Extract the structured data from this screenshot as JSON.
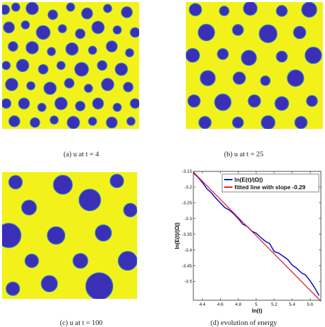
{
  "colors": {
    "background": "#f2f21a",
    "droplet": "#3b2fb8",
    "droplet_edge": "#2f7fc9",
    "series_energy": "#1010d0",
    "series_fit": "#e0202a"
  },
  "panels": [
    {
      "id": "p1",
      "caption": "(a)  u at t = 4",
      "droplets": [
        [
          0.02,
          0.06,
          0.035
        ],
        [
          0.1,
          0.04,
          0.03
        ],
        [
          0.22,
          0.05,
          0.045
        ],
        [
          0.37,
          0.1,
          0.035
        ],
        [
          0.5,
          0.04,
          0.03
        ],
        [
          0.62,
          0.09,
          0.04
        ],
        [
          0.77,
          0.05,
          0.03
        ],
        [
          0.91,
          0.08,
          0.04
        ],
        [
          0.05,
          0.2,
          0.04
        ],
        [
          0.17,
          0.18,
          0.03
        ],
        [
          0.3,
          0.24,
          0.05
        ],
        [
          0.44,
          0.21,
          0.03
        ],
        [
          0.57,
          0.25,
          0.035
        ],
        [
          0.7,
          0.2,
          0.045
        ],
        [
          0.84,
          0.22,
          0.03
        ],
        [
          0.97,
          0.24,
          0.035
        ],
        [
          0.08,
          0.35,
          0.035
        ],
        [
          0.22,
          0.36,
          0.045
        ],
        [
          0.36,
          0.39,
          0.03
        ],
        [
          0.51,
          0.37,
          0.045
        ],
        [
          0.66,
          0.38,
          0.03
        ],
        [
          0.8,
          0.35,
          0.04
        ],
        [
          0.93,
          0.4,
          0.03
        ],
        [
          0.03,
          0.5,
          0.03
        ],
        [
          0.15,
          0.5,
          0.045
        ],
        [
          0.3,
          0.53,
          0.035
        ],
        [
          0.43,
          0.5,
          0.03
        ],
        [
          0.58,
          0.53,
          0.05
        ],
        [
          0.73,
          0.5,
          0.035
        ],
        [
          0.87,
          0.53,
          0.045
        ],
        [
          0.07,
          0.65,
          0.045
        ],
        [
          0.21,
          0.66,
          0.03
        ],
        [
          0.35,
          0.68,
          0.045
        ],
        [
          0.49,
          0.64,
          0.035
        ],
        [
          0.63,
          0.68,
          0.03
        ],
        [
          0.77,
          0.65,
          0.045
        ],
        [
          0.92,
          0.67,
          0.035
        ],
        [
          0.03,
          0.8,
          0.035
        ],
        [
          0.16,
          0.8,
          0.04
        ],
        [
          0.29,
          0.83,
          0.03
        ],
        [
          0.43,
          0.8,
          0.045
        ],
        [
          0.57,
          0.82,
          0.035
        ],
        [
          0.7,
          0.8,
          0.04
        ],
        [
          0.84,
          0.83,
          0.03
        ],
        [
          0.97,
          0.8,
          0.035
        ],
        [
          0.09,
          0.94,
          0.04
        ],
        [
          0.24,
          0.95,
          0.035
        ],
        [
          0.38,
          0.93,
          0.03
        ],
        [
          0.52,
          0.95,
          0.045
        ],
        [
          0.66,
          0.94,
          0.03
        ],
        [
          0.8,
          0.95,
          0.04
        ],
        [
          0.94,
          0.94,
          0.03
        ]
      ]
    },
    {
      "id": "p2",
      "caption": "(b)  u at t = 25",
      "droplets": [
        [
          0.07,
          0.06,
          0.045
        ],
        [
          0.28,
          0.07,
          0.035
        ],
        [
          0.47,
          0.05,
          0.05
        ],
        [
          0.7,
          0.07,
          0.04
        ],
        [
          0.9,
          0.06,
          0.055
        ],
        [
          0.15,
          0.24,
          0.06
        ],
        [
          0.38,
          0.22,
          0.04
        ],
        [
          0.6,
          0.25,
          0.065
        ],
        [
          0.83,
          0.24,
          0.045
        ],
        [
          0.05,
          0.42,
          0.05
        ],
        [
          0.27,
          0.41,
          0.04
        ],
        [
          0.46,
          0.44,
          0.055
        ],
        [
          0.7,
          0.43,
          0.04
        ],
        [
          0.93,
          0.42,
          0.06
        ],
        [
          0.16,
          0.6,
          0.055
        ],
        [
          0.39,
          0.6,
          0.045
        ],
        [
          0.58,
          0.62,
          0.035
        ],
        [
          0.8,
          0.6,
          0.06
        ],
        [
          0.06,
          0.78,
          0.045
        ],
        [
          0.27,
          0.79,
          0.06
        ],
        [
          0.5,
          0.78,
          0.045
        ],
        [
          0.7,
          0.8,
          0.05
        ],
        [
          0.92,
          0.78,
          0.04
        ],
        [
          0.14,
          0.95,
          0.045
        ],
        [
          0.38,
          0.95,
          0.04
        ],
        [
          0.6,
          0.95,
          0.05
        ],
        [
          0.84,
          0.95,
          0.045
        ]
      ]
    },
    {
      "id": "p3",
      "caption": "(c)  u at t = 100",
      "droplets": [
        [
          0.1,
          0.08,
          0.05
        ],
        [
          0.45,
          0.1,
          0.07
        ],
        [
          0.85,
          0.07,
          0.05
        ],
        [
          0.2,
          0.28,
          0.055
        ],
        [
          0.65,
          0.22,
          0.08
        ],
        [
          0.95,
          0.3,
          0.05
        ],
        [
          0.05,
          0.5,
          0.09
        ],
        [
          0.4,
          0.5,
          0.065
        ],
        [
          0.75,
          0.48,
          0.06
        ],
        [
          0.22,
          0.7,
          0.05
        ],
        [
          0.58,
          0.7,
          0.055
        ],
        [
          0.93,
          0.7,
          0.07
        ],
        [
          0.35,
          0.88,
          0.06
        ],
        [
          0.72,
          0.9,
          0.1
        ],
        [
          0.08,
          0.92,
          0.05
        ]
      ]
    }
  ],
  "chart_caption": "(d)  evolution of energy",
  "chart_data": {
    "type": "line",
    "xlabel": "ln(t)",
    "ylabel": "ln(E(t)/|Ω|)",
    "xlim": [
      4.3,
      5.72
    ],
    "ylim": [
      -3.56,
      -3.15
    ],
    "xticks": [
      4.4,
      4.6,
      4.8,
      5,
      5.2,
      5.4,
      5.6
    ],
    "xtick_labels": [
      "4.4",
      "4.6",
      "4.8",
      "5",
      "5.2",
      "5.4",
      "5.6"
    ],
    "yticks": [
      -3.15,
      -3.2,
      -3.25,
      -3.3,
      -3.35,
      -3.4,
      -3.45,
      -3.5
    ],
    "ytick_labels": [
      "-3.15",
      "-3.2",
      "-3.25",
      "-3.3",
      "-3.35",
      "-3.4",
      "-3.45",
      "-3.5"
    ],
    "legend": "top-right",
    "series": [
      {
        "name": "ln(E(t)/|Ω|)",
        "x": [
          4.3,
          4.35,
          4.4,
          4.45,
          4.5,
          4.55,
          4.6,
          4.65,
          4.7,
          4.75,
          4.8,
          4.85,
          4.9,
          4.95,
          5.0,
          5.05,
          5.1,
          5.15,
          5.2,
          5.25,
          5.3,
          5.35,
          5.4,
          5.45,
          5.5,
          5.55,
          5.6,
          5.65,
          5.7
        ],
        "y": [
          -3.155,
          -3.168,
          -3.185,
          -3.205,
          -3.218,
          -3.235,
          -3.25,
          -3.265,
          -3.273,
          -3.285,
          -3.3,
          -3.318,
          -3.325,
          -3.34,
          -3.347,
          -3.36,
          -3.372,
          -3.38,
          -3.405,
          -3.41,
          -3.42,
          -3.43,
          -3.448,
          -3.458,
          -3.472,
          -3.48,
          -3.498,
          -3.52,
          -3.545
        ]
      },
      {
        "name": "fitted line with slope -0.29",
        "x": [
          4.3,
          5.72
        ],
        "y": [
          -3.152,
          -3.563
        ]
      }
    ]
  }
}
